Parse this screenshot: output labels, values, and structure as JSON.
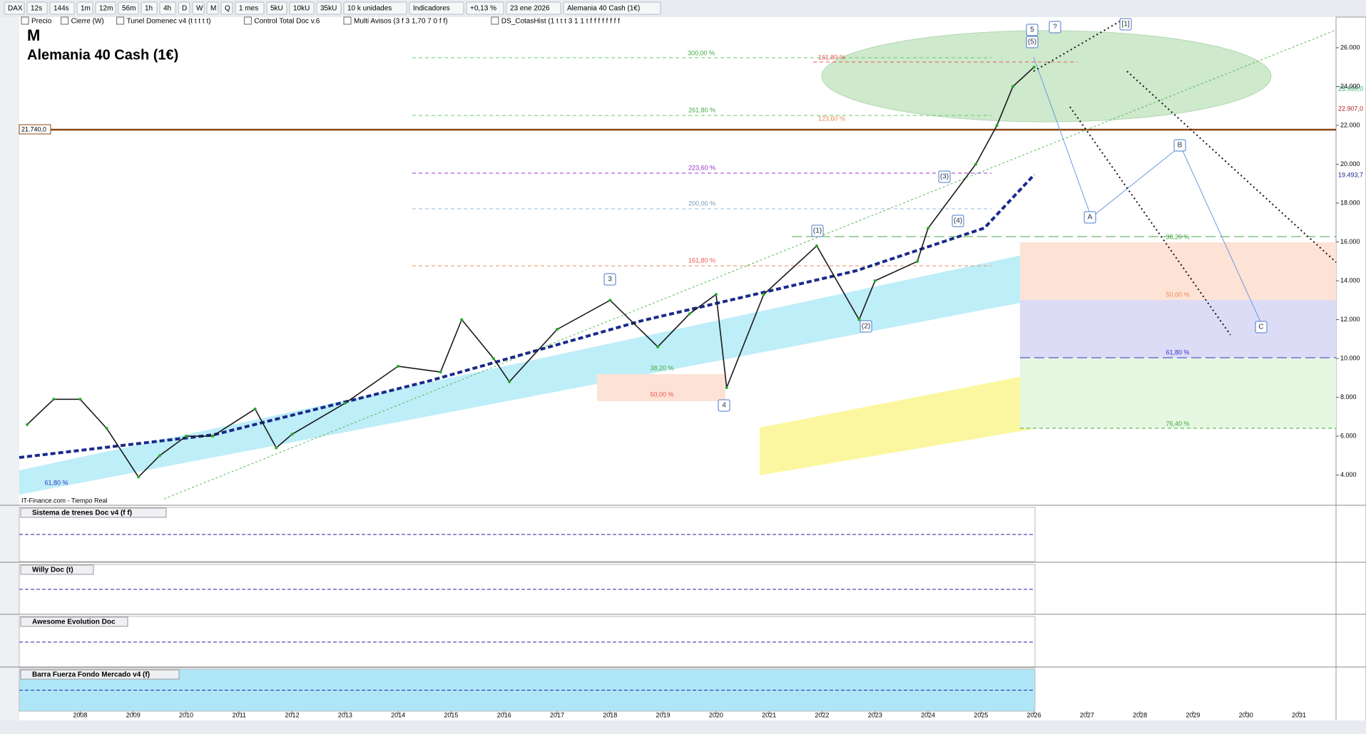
{
  "toolbar": {
    "buttons": [
      "DAX",
      "12s",
      "144s",
      "1m",
      "12m",
      "56m",
      "1h",
      "4h",
      "D",
      "W",
      "M",
      "Q",
      "1 mes",
      "5kU",
      "10kU",
      "35kU",
      "10 k unidades",
      "Indicadores",
      "+0,13 %",
      "23 ene 2026",
      "Alemania 40 Cash (1€)"
    ]
  },
  "overlays": [
    "Precio",
    "Cierre (W)",
    "Tunel Domenec v4 (t t t t t)",
    "Control Total Doc v.6",
    "Multi Avisos (3 f 3 1,70 7 0 f f)",
    "DS_CotasHist (1 t t t 3 1 1 t f f f f f f f f"
  ],
  "source": "IT-Finance.com - Tiempo Real",
  "price_labels": {
    "last": "23.939,0",
    "second": "22.907,0",
    "ma": "19.493,7",
    "level": "21.740,0"
  },
  "annotations": [
    "300,00 %",
    "161,80 %",
    "261,80 %",
    "123,60 %",
    "223,60 %",
    "200,00 %",
    "161,80 %",
    "38,20 %",
    "50,00 %",
    "61,80 %",
    "38,20 %",
    "50,00 %",
    "61,80 %",
    "76,40 %"
  ],
  "waves": [
    "5",
    "(5)",
    "?",
    "[1]",
    "3",
    "4",
    "(1)",
    "(2)",
    "(3)",
    "(4)",
    "A",
    "B",
    "C"
  ],
  "panels": [
    "Sistema de trenes Doc v4 (f f)",
    "Willy Doc (t)",
    "Awesome Evolution Doc",
    "Barra Fuerza Fondo Mercado v4 (f)"
  ],
  "chart_data": {
    "type": "line",
    "title": "M",
    "subtitle": "Alemania 40 Cash (1€)",
    "color": "#1a1a1a",
    "x": [
      2007.0,
      2007.5,
      2008.0,
      2008.5,
      2009.1,
      2009.5,
      2010.0,
      2010.5,
      2011.3,
      2011.7,
      2012.0,
      2013.0,
      2014.0,
      2014.8,
      2015.2,
      2015.8,
      2016.1,
      2017.0,
      2018.0,
      2018.9,
      2019.5,
      2020.0,
      2020.2,
      2020.9,
      2021.9,
      2022.7,
      2023.0,
      2023.8,
      2024.0,
      2024.9,
      2025.3,
      2025.6,
      2026.0
    ],
    "values": [
      6600,
      7900,
      7900,
      6400,
      3900,
      5000,
      6000,
      6000,
      7400,
      5400,
      6100,
      7700,
      9600,
      9300,
      12000,
      10000,
      8800,
      11500,
      13000,
      10600,
      12300,
      13300,
      8500,
      13300,
      15800,
      12000,
      14000,
      15000,
      16700,
      20000,
      22000,
      24000,
      25000
    ],
    "xlim": [
      2006.85,
      2031.7
    ],
    "xticks": [
      2008,
      2009,
      2010,
      2011,
      2012,
      2013,
      2014,
      2015,
      2016,
      2017,
      2018,
      2019,
      2020,
      2021,
      2022,
      2023,
      2024,
      2025,
      2026,
      2027,
      2028,
      2029,
      2030,
      2031
    ],
    "ylim": [
      2700,
      27650
    ],
    "yticks": [
      {
        "value": 4000,
        "label": "4.000"
      },
      {
        "value": 6000,
        "label": "6.000"
      },
      {
        "value": 8000,
        "label": "8.000"
      },
      {
        "value": 10000,
        "label": "10.000"
      },
      {
        "value": 12000,
        "label": "12.000"
      },
      {
        "value": 14000,
        "label": "14.000"
      },
      {
        "value": 16000,
        "label": "16.000"
      },
      {
        "value": 18000,
        "label": "18.000"
      },
      {
        "value": 20000,
        "label": "20.000"
      },
      {
        "value": 22000,
        "label": "22.000"
      },
      {
        "value": 24000,
        "label": "24.000"
      },
      {
        "value": 26000,
        "label": "26.000"
      }
    ],
    "grid": false
  }
}
